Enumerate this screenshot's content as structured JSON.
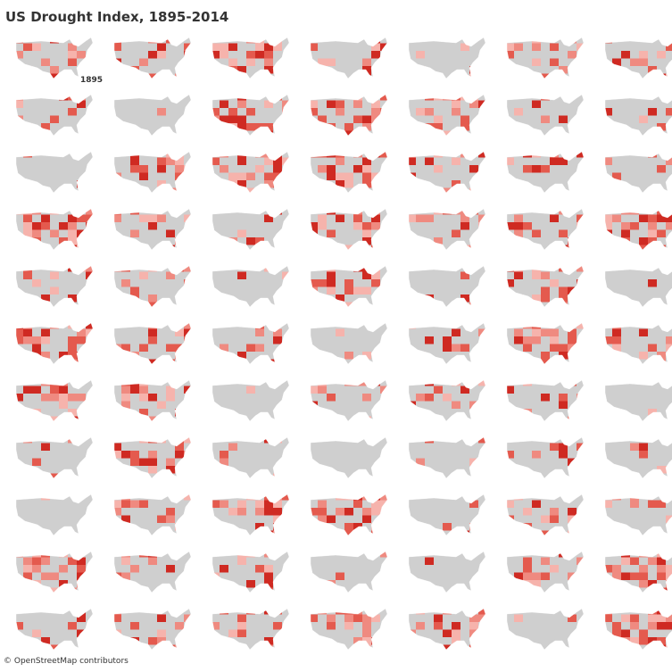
{
  "header": {
    "title": "US Drought Index, 1895-2014"
  },
  "maps": {
    "first_label": "1895"
  },
  "footer": {
    "attribution": "© OpenStreetMap contributors"
  }
}
